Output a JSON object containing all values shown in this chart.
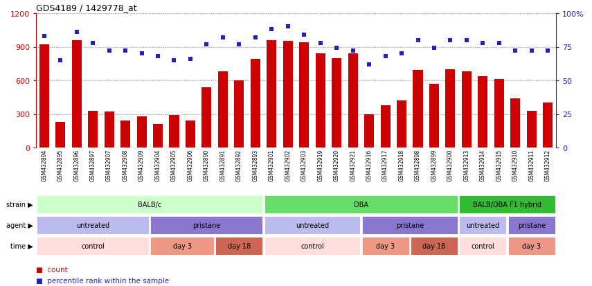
{
  "title": "GDS4189 / 1429778_at",
  "samples": [
    "GSM432894",
    "GSM432895",
    "GSM432896",
    "GSM432897",
    "GSM432907",
    "GSM432908",
    "GSM432909",
    "GSM432904",
    "GSM432905",
    "GSM432906",
    "GSM432890",
    "GSM432891",
    "GSM432892",
    "GSM432893",
    "GSM432901",
    "GSM432902",
    "GSM432903",
    "GSM432919",
    "GSM432920",
    "GSM432921",
    "GSM432916",
    "GSM432917",
    "GSM432918",
    "GSM432898",
    "GSM432899",
    "GSM432900",
    "GSM432913",
    "GSM432914",
    "GSM432915",
    "GSM432910",
    "GSM432911",
    "GSM432912"
  ],
  "counts": [
    920,
    230,
    960,
    330,
    320,
    240,
    280,
    210,
    290,
    240,
    540,
    680,
    600,
    790,
    960,
    950,
    940,
    840,
    800,
    840,
    300,
    380,
    420,
    690,
    570,
    700,
    680,
    640,
    610,
    440,
    330,
    400
  ],
  "percentile": [
    83,
    65,
    86,
    78,
    72,
    72,
    70,
    68,
    65,
    66,
    77,
    82,
    77,
    82,
    88,
    90,
    84,
    78,
    74,
    72,
    62,
    68,
    70,
    80,
    74,
    80,
    80,
    78,
    78,
    72,
    72,
    72
  ],
  "bar_color": "#cc0000",
  "dot_color": "#2222bb",
  "ylim_left": [
    0,
    1200
  ],
  "ylim_right": [
    0,
    100
  ],
  "yticks_left": [
    0,
    300,
    600,
    900,
    1200
  ],
  "yticks_right": [
    0,
    25,
    50,
    75,
    100
  ],
  "ytick_labels_right": [
    "0",
    "25",
    "50",
    "75",
    "100%"
  ],
  "strain_groups": [
    {
      "label": "BALB/c",
      "start": 0,
      "end": 13,
      "color": "#ccffcc"
    },
    {
      "label": "DBA",
      "start": 14,
      "end": 25,
      "color": "#66dd66"
    },
    {
      "label": "BALB/DBA F1 hybrid",
      "start": 26,
      "end": 31,
      "color": "#33bb33"
    }
  ],
  "agent_groups": [
    {
      "label": "untreated",
      "start": 0,
      "end": 6,
      "color": "#bbbbee"
    },
    {
      "label": "pristane",
      "start": 7,
      "end": 13,
      "color": "#8877cc"
    },
    {
      "label": "untreated",
      "start": 14,
      "end": 19,
      "color": "#bbbbee"
    },
    {
      "label": "pristane",
      "start": 20,
      "end": 25,
      "color": "#8877cc"
    },
    {
      "label": "untreated",
      "start": 26,
      "end": 28,
      "color": "#bbbbee"
    },
    {
      "label": "pristane",
      "start": 29,
      "end": 31,
      "color": "#8877cc"
    }
  ],
  "time_groups": [
    {
      "label": "control",
      "start": 0,
      "end": 6,
      "color": "#ffdddd"
    },
    {
      "label": "day 3",
      "start": 7,
      "end": 10,
      "color": "#ee9988"
    },
    {
      "label": "day 18",
      "start": 11,
      "end": 13,
      "color": "#cc6655"
    },
    {
      "label": "control",
      "start": 14,
      "end": 19,
      "color": "#ffdddd"
    },
    {
      "label": "day 3",
      "start": 20,
      "end": 22,
      "color": "#ee9988"
    },
    {
      "label": "day 18",
      "start": 23,
      "end": 25,
      "color": "#cc6655"
    },
    {
      "label": "control",
      "start": 26,
      "end": 28,
      "color": "#ffdddd"
    },
    {
      "label": "day 3",
      "start": 29,
      "end": 31,
      "color": "#ee9988"
    }
  ],
  "row_labels": [
    "strain",
    "agent",
    "time"
  ],
  "legend_items": [
    {
      "label": "count",
      "color": "#cc0000"
    },
    {
      "label": "percentile rank within the sample",
      "color": "#2222bb"
    }
  ]
}
